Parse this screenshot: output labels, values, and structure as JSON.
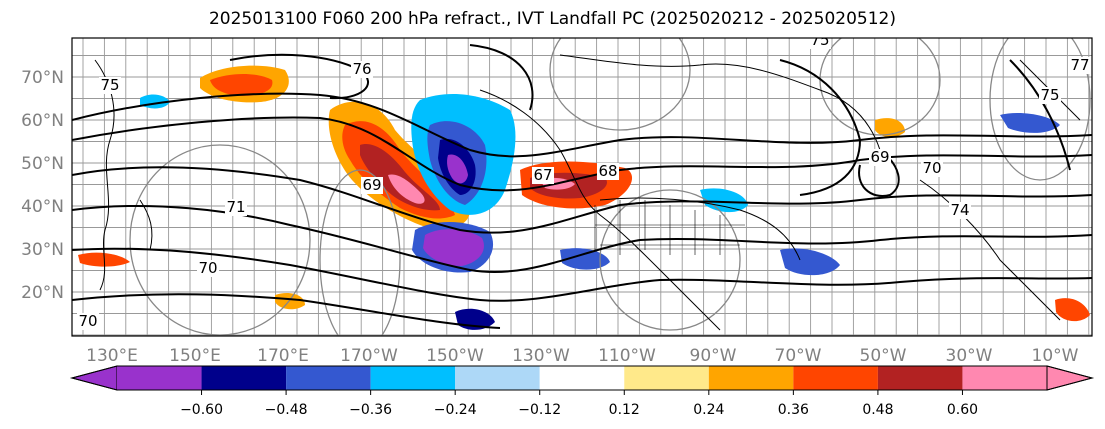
{
  "title": "2025013100 F060 200 hPa refract., IVT Landfall PC (2025020212 - 2025020512)",
  "map": {
    "lon_ticks": [
      "130°E",
      "150°E",
      "170°E",
      "170°W",
      "150°W",
      "130°W",
      "110°W",
      "90°W",
      "70°W",
      "50°W",
      "30°W",
      "10°W"
    ],
    "lat_ticks": [
      "70°N",
      "60°N",
      "50°N",
      "40°N",
      "30°N",
      "20°N"
    ],
    "contour_labels": [
      "75",
      "76",
      "71",
      "70",
      "70",
      "69",
      "67",
      "68",
      "69",
      "70",
      "74",
      "75",
      "77",
      "75"
    ]
  },
  "colorbar": {
    "tick_labels": [
      "−0.60",
      "−0.48",
      "−0.36",
      "−0.24",
      "−0.12",
      "0.12",
      "0.24",
      "0.36",
      "0.48",
      "0.60"
    ],
    "colors": [
      "#9932cc",
      "#00008b",
      "#3458d0",
      "#00bfff",
      "#add8f7",
      "#ffffff",
      "#ffe98a",
      "#ffa500",
      "#ff4500",
      "#b22222",
      "#ff88b0",
      "#ff88b0"
    ]
  }
}
